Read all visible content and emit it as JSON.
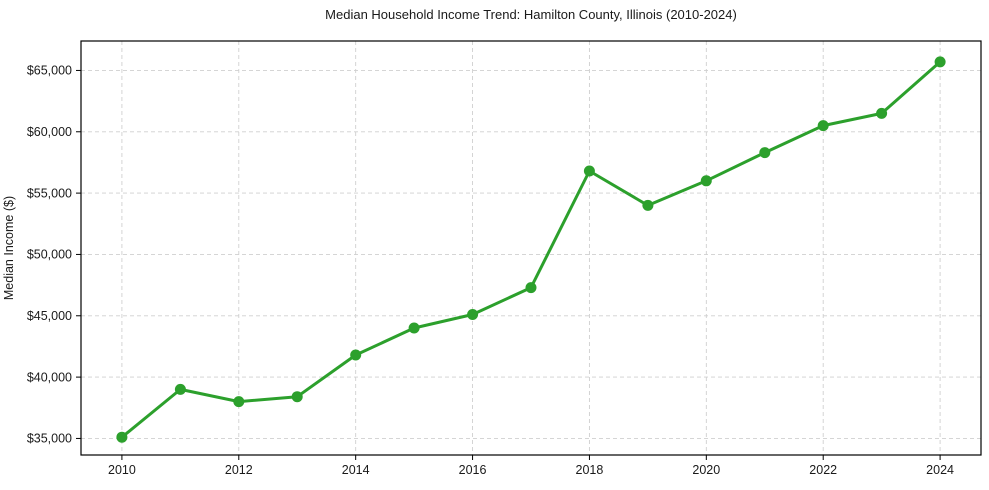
{
  "chart_data": {
    "type": "line",
    "title": "Median Household Income Trend: Hamilton County, Illinois (2010-2024)",
    "xlabel": "",
    "ylabel": "Median Income ($)",
    "series": [
      {
        "name": "Median Household Income",
        "x": [
          2010,
          2011,
          2012,
          2013,
          2014,
          2015,
          2016,
          2017,
          2018,
          2019,
          2020,
          2021,
          2022,
          2023,
          2024
        ],
        "values": [
          35100,
          39000,
          38000,
          38400,
          41800,
          44000,
          45100,
          47300,
          56800,
          54000,
          56000,
          58300,
          60500,
          61500,
          65700
        ]
      }
    ],
    "xticks": [
      2010,
      2012,
      2014,
      2016,
      2018,
      2020,
      2022,
      2024
    ],
    "xtick_labels": [
      "2010",
      "2012",
      "2014",
      "2016",
      "2018",
      "2020",
      "2022",
      "2024"
    ],
    "yticks": [
      35000,
      40000,
      45000,
      50000,
      55000,
      60000,
      65000
    ],
    "ytick_labels": [
      "$35,000",
      "$40,000",
      "$45,000",
      "$50,000",
      "$55,000",
      "$60,000",
      "$65,000"
    ],
    "xlim": [
      2009.3,
      2024.7
    ],
    "ylim": [
      33650,
      67400
    ],
    "grid": true,
    "grid_style": "dashed",
    "legend": false,
    "line_color": "#2ca02c",
    "marker_color": "#2ca02c",
    "grid_color": "#cfcfcf",
    "axis_color": "#000000",
    "text_color": "#1a1a1a",
    "background_color": "#ffffff",
    "marker": "circle",
    "marker_radius": 5.5,
    "line_width": 3
  }
}
